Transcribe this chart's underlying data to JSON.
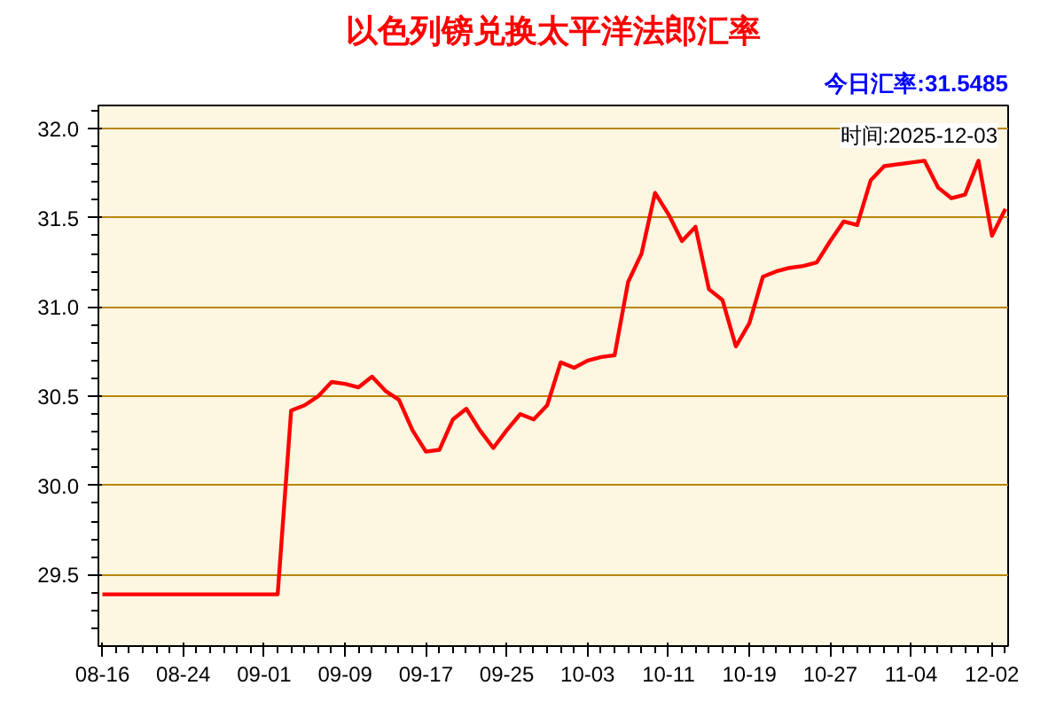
{
  "chart_data": {
    "type": "line",
    "title": "以色列镑兑换太平洋法郎汇率",
    "subtitle": "今日汇率:31.5485",
    "annotations": [
      "时间:2025-12-03"
    ],
    "categories": [
      "08-16",
      null,
      null,
      null,
      null,
      null,
      "08-24",
      null,
      null,
      null,
      null,
      null,
      "09-01",
      null,
      null,
      null,
      null,
      null,
      "09-09",
      null,
      null,
      null,
      null,
      null,
      "09-17",
      null,
      null,
      null,
      null,
      null,
      "09-25",
      null,
      null,
      null,
      null,
      null,
      "10-03",
      null,
      null,
      null,
      null,
      null,
      "10-11",
      null,
      null,
      null,
      null,
      null,
      "10-19",
      null,
      null,
      null,
      null,
      null,
      "10-27",
      null,
      null,
      null,
      null,
      null,
      "11-04",
      null,
      null,
      null,
      null,
      null,
      "12-02",
      null
    ],
    "series": [
      {
        "color": "#ff0000",
        "values": [
          29.39,
          29.39,
          29.39,
          29.39,
          29.39,
          29.39,
          29.39,
          29.39,
          29.39,
          29.39,
          29.39,
          29.39,
          29.39,
          29.39,
          30.42,
          30.45,
          30.5,
          30.58,
          30.57,
          30.55,
          30.61,
          30.53,
          30.48,
          30.31,
          30.19,
          30.2,
          30.37,
          30.43,
          30.31,
          30.21,
          30.31,
          30.4,
          30.37,
          30.45,
          30.69,
          30.66,
          30.7,
          30.72,
          30.73,
          31.14,
          31.3,
          31.64,
          31.52,
          31.37,
          31.45,
          31.1,
          31.04,
          30.78,
          30.91,
          31.17,
          31.2,
          31.22,
          31.23,
          31.25,
          31.37,
          31.48,
          31.46,
          31.71,
          31.79,
          31.8,
          31.81,
          31.82,
          31.67,
          31.61,
          31.63,
          31.82,
          31.4,
          31.55
        ]
      }
    ],
    "ylim": [
      29.1,
      32.13
    ],
    "yticks": [
      29.5,
      {
        "value": 30,
        "label": "30.0"
      },
      30.5,
      {
        "value": 31,
        "label": "31.0"
      },
      31.5,
      {
        "value": 32,
        "label": "32.0"
      }
    ],
    "grid": "y",
    "marker": "none",
    "line_style": "solid"
  }
}
